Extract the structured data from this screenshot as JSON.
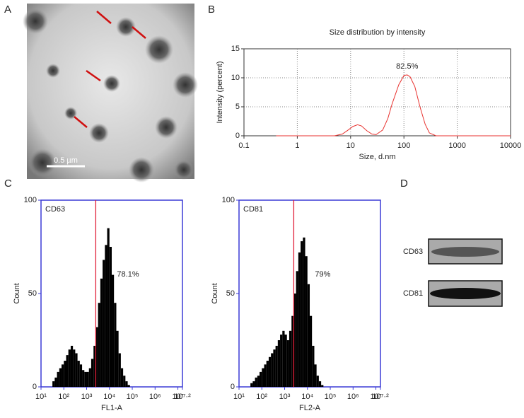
{
  "panel_labels": [
    "A",
    "B",
    "C",
    "D"
  ],
  "image": {
    "scale_label": "0.5 µm"
  },
  "blot": {
    "labels": [
      "CD63",
      "CD81"
    ]
  },
  "chart_data": [
    {
      "type": "line",
      "title": "Size distribution by intensity",
      "x_label": "Size, d.nm",
      "y_label": "Intensity (percent)",
      "annotation": "82.5%",
      "log_x": true,
      "grid": true,
      "color": "#e8322f",
      "xlim": [
        0.1,
        10000
      ],
      "xticks": [
        0.1,
        1,
        10,
        100,
        1000,
        10000
      ],
      "ylim": [
        0,
        15
      ],
      "yticks": [
        0,
        5,
        10,
        15
      ],
      "x": [
        0.4,
        1,
        5,
        7,
        9,
        11,
        13.5,
        16,
        20,
        25,
        30,
        40,
        50,
        60,
        80,
        100,
        115,
        130,
        160,
        200,
        250,
        300,
        400,
        1000,
        10000
      ],
      "values": [
        0,
        0,
        0,
        0.3,
        1.0,
        1.6,
        1.9,
        1.7,
        0.9,
        0.3,
        0.2,
        1.0,
        3.0,
        5.5,
        8.8,
        10.4,
        10.5,
        10.2,
        8.5,
        5.0,
        2.0,
        0.5,
        0,
        0,
        0
      ]
    },
    {
      "type": "histogram",
      "label": "CD63",
      "annotation": "78.1%",
      "x_label": "FL1-A",
      "y_label": "Count",
      "log_x": true,
      "color": "#000000",
      "axis_color": "#3b3bd6",
      "gate_color": "#e0213a",
      "gate": 2510,
      "xlim": [
        10,
        15848932
      ],
      "xticks": [
        {
          "value": 10,
          "label": "10¹"
        },
        {
          "value": 100,
          "label": "10²"
        },
        {
          "value": 1000,
          "label": "10³"
        },
        {
          "value": 10000,
          "label": "10⁴"
        },
        {
          "value": 100000,
          "label": "10⁵"
        },
        {
          "value": 1000000,
          "label": "10⁶"
        },
        {
          "value": 10000000,
          "label": "10⁷"
        },
        {
          "value": 15848932,
          "label": "10⁷·²"
        }
      ],
      "ylim": [
        0,
        100
      ],
      "yticks": [
        0,
        50,
        100
      ],
      "bins": [
        31.6,
        39.8,
        50.1,
        63.1,
        79.4,
        100,
        126,
        158,
        200,
        251,
        316,
        398,
        501,
        631,
        794,
        1000,
        1260,
        1580,
        2000,
        2510,
        3160,
        3980,
        5010,
        6310,
        7940,
        10000,
        12600,
        15800,
        20000,
        25100,
        31600,
        39800,
        50100,
        63100,
        79400,
        100000
      ],
      "values": [
        3,
        5,
        8,
        10,
        12,
        14,
        17,
        20,
        22,
        20,
        18,
        14,
        12,
        9,
        8,
        8,
        10,
        15,
        22,
        32,
        45,
        58,
        68,
        76,
        85,
        75,
        60,
        45,
        30,
        18,
        10,
        6,
        3,
        1,
        0
      ]
    },
    {
      "type": "histogram",
      "label": "CD81",
      "annotation": "79%",
      "x_label": "FL2-A",
      "y_label": "Count",
      "log_x": true,
      "color": "#000000",
      "axis_color": "#3b3bd6",
      "gate_color": "#e0213a",
      "gate": 2510,
      "xlim": [
        10,
        15848932
      ],
      "xticks": [
        {
          "value": 10,
          "label": "10¹"
        },
        {
          "value": 100,
          "label": "10²"
        },
        {
          "value": 1000,
          "label": "10³"
        },
        {
          "value": 10000,
          "label": "10⁴"
        },
        {
          "value": 100000,
          "label": "10⁵"
        },
        {
          "value": 1000000,
          "label": "10⁶"
        },
        {
          "value": 10000000,
          "label": "10⁷"
        },
        {
          "value": 15848932,
          "label": "10⁷·²"
        }
      ],
      "ylim": [
        0,
        100
      ],
      "yticks": [
        0,
        50,
        100
      ],
      "bins": [
        31.6,
        39.8,
        50.1,
        63.1,
        79.4,
        100,
        126,
        158,
        200,
        251,
        316,
        398,
        501,
        631,
        794,
        1000,
        1260,
        1580,
        2000,
        2510,
        3160,
        3980,
        5010,
        6310,
        7940,
        10000,
        12600,
        15800,
        20000,
        25100,
        31600,
        39800,
        50100,
        63100,
        79400,
        100000
      ],
      "values": [
        2,
        3,
        5,
        6,
        8,
        10,
        12,
        14,
        16,
        18,
        20,
        22,
        25,
        28,
        30,
        28,
        25,
        30,
        38,
        50,
        62,
        72,
        78,
        80,
        70,
        55,
        38,
        22,
        12,
        6,
        3,
        1,
        0,
        0,
        0
      ]
    }
  ]
}
